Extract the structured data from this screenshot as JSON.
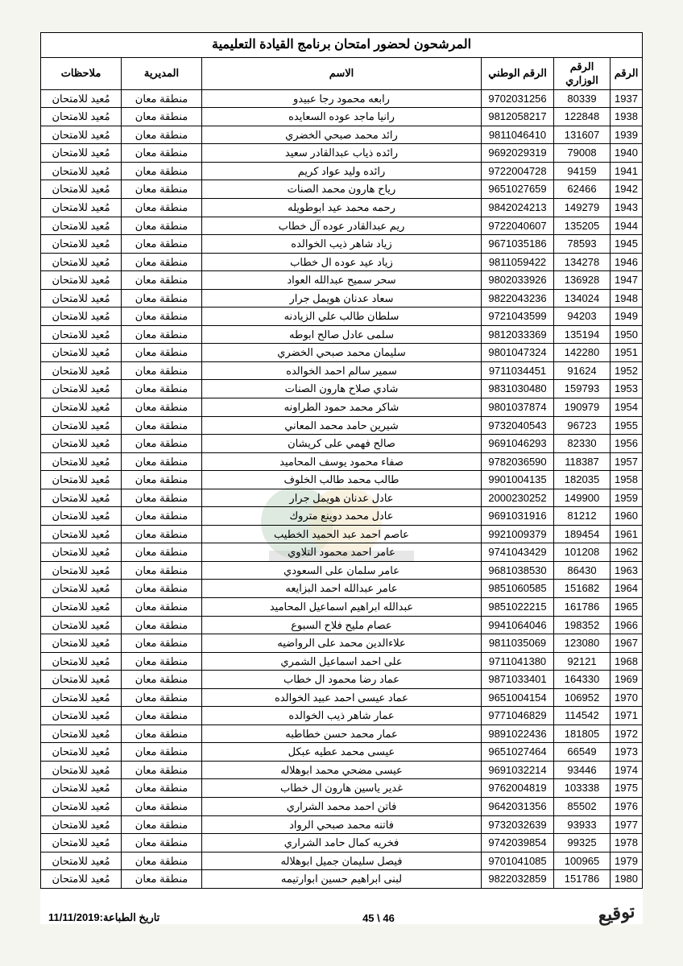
{
  "title": "المرشحون لحضور امتحان برنامج القيادة التعليمية",
  "columns": [
    "الرقم",
    "الرقم الوزاري",
    "الرقم الوطني",
    "الاسم",
    "المديرية",
    "ملاحظات"
  ],
  "directorate": "منطقة معان",
  "note": "مُعيد للامتحان",
  "footer": {
    "page": "46 \\ 45",
    "print_date": "تاريخ الطباعة:11/11/2019"
  },
  "rows": [
    {
      "n": 1937,
      "min": "80339",
      "nat": "9702031256",
      "name": "رابعه محمود رجا عبيدو"
    },
    {
      "n": 1938,
      "min": "122848",
      "nat": "9812058217",
      "name": "رانيا ماجد عوده السعايده"
    },
    {
      "n": 1939,
      "min": "131607",
      "nat": "9811046410",
      "name": "رائد محمد صبحي الخضري"
    },
    {
      "n": 1940,
      "min": "79008",
      "nat": "9692029319",
      "name": "رائده ذياب عبدالقادر سعيد"
    },
    {
      "n": 1941,
      "min": "94159",
      "nat": "9722004728",
      "name": "رائده وليد عواد كريم"
    },
    {
      "n": 1942,
      "min": "62466",
      "nat": "9651027659",
      "name": "رياح هارون محمد الصنات"
    },
    {
      "n": 1943,
      "min": "149279",
      "nat": "9842024213",
      "name": "رحمه محمد عيد ابوطويله"
    },
    {
      "n": 1944,
      "min": "135205",
      "nat": "9722040607",
      "name": "ريم عبدالقادر عوده آل خطاب"
    },
    {
      "n": 1945,
      "min": "78593",
      "nat": "9671035186",
      "name": "زياد شاهر ذيب الخوالده"
    },
    {
      "n": 1946,
      "min": "134278",
      "nat": "9811059422",
      "name": "زياد عيد عوده ال خطاب"
    },
    {
      "n": 1947,
      "min": "136928",
      "nat": "9802033926",
      "name": "سحر سميح عبدالله العواد"
    },
    {
      "n": 1948,
      "min": "134024",
      "nat": "9822043236",
      "name": "سعاد عدنان هويمل جرار"
    },
    {
      "n": 1949,
      "min": "94203",
      "nat": "9721043599",
      "name": "سلطان طالب علي الزيادنه"
    },
    {
      "n": 1950,
      "min": "135194",
      "nat": "9812033369",
      "name": "سلمى عادل صالح ابوطه"
    },
    {
      "n": 1951,
      "min": "142280",
      "nat": "9801047324",
      "name": "سليمان محمد صبحي الخضري"
    },
    {
      "n": 1952,
      "min": "91624",
      "nat": "9711034451",
      "name": "سمير سالم احمد الخوالده"
    },
    {
      "n": 1953,
      "min": "159793",
      "nat": "9831030480",
      "name": "شادي صلاح هارون الصنات"
    },
    {
      "n": 1954,
      "min": "190979",
      "nat": "9801037874",
      "name": "شاكر محمد حمود الطراونه"
    },
    {
      "n": 1955,
      "min": "96723",
      "nat": "9732040543",
      "name": "شيرين حامد محمد المعاني"
    },
    {
      "n": 1956,
      "min": "82330",
      "nat": "9691046293",
      "name": "صالح فهمي على كريشان"
    },
    {
      "n": 1957,
      "min": "118387",
      "nat": "9782036590",
      "name": "صفاء محمود يوسف المحاميد"
    },
    {
      "n": 1958,
      "min": "182035",
      "nat": "9901004135",
      "name": "طالب محمد طالب الخلوف"
    },
    {
      "n": 1959,
      "min": "149900",
      "nat": "2000230252",
      "name": "عادل عدنان هويمل جرار"
    },
    {
      "n": 1960,
      "min": "81212",
      "nat": "9691031916",
      "name": "عادل محمد دوينع متروك"
    },
    {
      "n": 1961,
      "min": "189454",
      "nat": "9921009379",
      "name": "عاصم احمد عبد الحميد الخطيب"
    },
    {
      "n": 1962,
      "min": "101208",
      "nat": "9741043429",
      "name": "عامر احمد محمود التلاوي"
    },
    {
      "n": 1963,
      "min": "86430",
      "nat": "9681038530",
      "name": "عامر سلمان على السعودي"
    },
    {
      "n": 1964,
      "min": "151682",
      "nat": "9851060585",
      "name": "عامر عبدالله احمد البزايعه"
    },
    {
      "n": 1965,
      "min": "161786",
      "nat": "9851022215",
      "name": "عبدالله ابراهيم اسماعيل المحاميد"
    },
    {
      "n": 1966,
      "min": "198352",
      "nat": "9941064046",
      "name": "عصام مليح فلاح السبوع"
    },
    {
      "n": 1967,
      "min": "123080",
      "nat": "9811035069",
      "name": "علاءالدين محمد على الرواضيه"
    },
    {
      "n": 1968,
      "min": "92121",
      "nat": "9711041380",
      "name": "على احمد اسماعيل الشمري"
    },
    {
      "n": 1969,
      "min": "164330",
      "nat": "9871033401",
      "name": "عماد رضا محمود ال خطاب"
    },
    {
      "n": 1970,
      "min": "106952",
      "nat": "9651004154",
      "name": "عماد عيسى احمد عبيد الخوالده"
    },
    {
      "n": 1971,
      "min": "114542",
      "nat": "9771046829",
      "name": "عمار شاهر ذيب الخوالده"
    },
    {
      "n": 1972,
      "min": "181805",
      "nat": "9891022436",
      "name": "عمار محمد حسن خطاطبه"
    },
    {
      "n": 1973,
      "min": "66549",
      "nat": "9651027464",
      "name": "عيسى محمد عطيه عبكل"
    },
    {
      "n": 1974,
      "min": "93446",
      "nat": "9691032214",
      "name": "عيسى مضحي محمد ابوهلاله"
    },
    {
      "n": 1975,
      "min": "103338",
      "nat": "9762004819",
      "name": "غدير ياسين هارون ال خطاب"
    },
    {
      "n": 1976,
      "min": "85502",
      "nat": "9642031356",
      "name": "فاتن احمد محمد الشراري"
    },
    {
      "n": 1977,
      "min": "93933",
      "nat": "9732032639",
      "name": "فاتنه محمد صبحي الرواد"
    },
    {
      "n": 1978,
      "min": "99325",
      "nat": "9742039854",
      "name": "فخريه كمال حامد الشراري"
    },
    {
      "n": 1979,
      "min": "100965",
      "nat": "9701041085",
      "name": "فيصل سليمان جميل ابوهلاله"
    },
    {
      "n": 1980,
      "min": "151786",
      "nat": "9822032859",
      "name": "لبنى ابراهيم حسين ابوارتيمه"
    }
  ]
}
